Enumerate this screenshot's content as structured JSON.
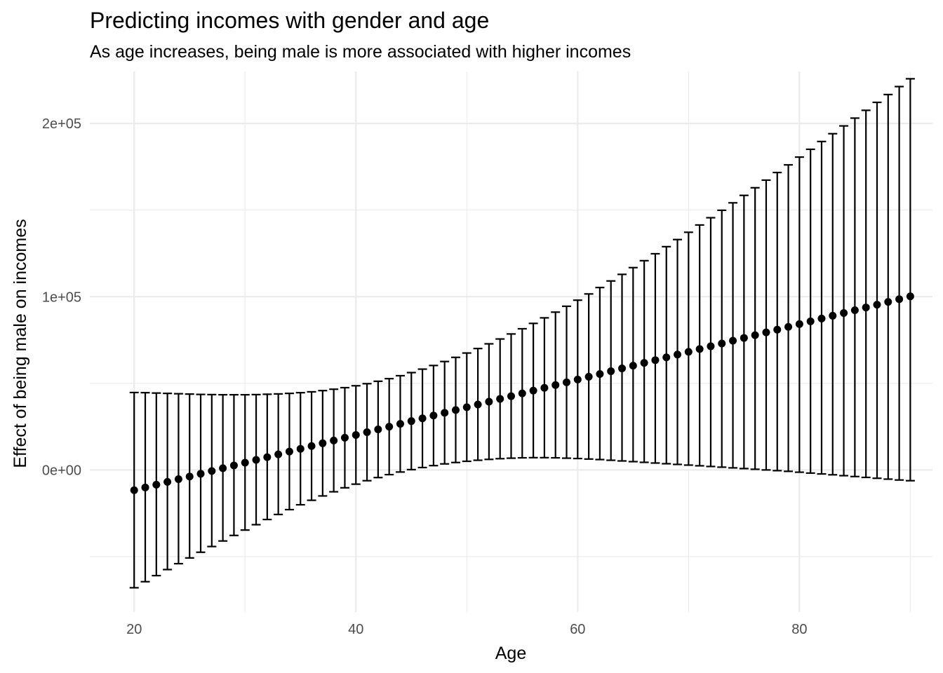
{
  "chart_data": {
    "type": "scatter",
    "title": "Predicting incomes with gender and age",
    "subtitle": "As age increases, being male is more associated with higher incomes",
    "xlabel": "Age",
    "ylabel": "Effect of being male on incomes",
    "xlim": [
      16,
      92
    ],
    "ylim": [
      -82000,
      230000
    ],
    "x_major_ticks": [
      20,
      40,
      60,
      80
    ],
    "x_minor_ticks": [
      30,
      50,
      70,
      90
    ],
    "y_major_ticks": [
      0,
      100000,
      200000
    ],
    "y_minor_ticks": [
      -50000,
      50000,
      150000
    ],
    "x_tick_labels": [
      "20",
      "40",
      "60",
      "80"
    ],
    "y_tick_labels": [
      "0e+00",
      "1e+05",
      "2e+05"
    ],
    "grid": true,
    "error_bars": true,
    "point_color": "#000000",
    "series": [
      {
        "x": [
          20,
          21,
          22,
          23,
          24,
          25,
          26,
          27,
          28,
          29,
          30,
          31,
          32,
          33,
          34,
          35,
          36,
          37,
          38,
          39,
          40,
          41,
          42,
          43,
          44,
          45,
          46,
          47,
          48,
          49,
          50,
          51,
          52,
          53,
          54,
          55,
          56,
          57,
          58,
          59,
          60,
          61,
          62,
          63,
          64,
          65,
          66,
          67,
          68,
          69,
          70,
          71,
          72,
          73,
          74,
          75,
          76,
          77,
          78,
          79,
          80,
          81,
          82,
          83,
          84,
          85,
          86,
          87,
          88,
          89,
          90
        ],
        "y": [
          -11700,
          -10100,
          -8500,
          -6900,
          -5300,
          -3800,
          -2200,
          -600,
          1000,
          2600,
          4200,
          5800,
          7400,
          9000,
          10600,
          12200,
          13800,
          15400,
          17000,
          18600,
          20200,
          21800,
          23400,
          25000,
          26600,
          28200,
          29800,
          31400,
          33000,
          34600,
          36200,
          37800,
          39400,
          41000,
          42600,
          44200,
          45800,
          47400,
          49000,
          50600,
          52200,
          53800,
          55400,
          57000,
          58600,
          60200,
          61800,
          63400,
          65000,
          66600,
          68200,
          69800,
          71400,
          73000,
          74600,
          76200,
          77800,
          79400,
          81000,
          82600,
          84200,
          85800,
          87400,
          89000,
          90600,
          92200,
          93800,
          95400,
          97000,
          98600,
          100200
        ],
        "lower": [
          -68000,
          -64500,
          -61000,
          -57500,
          -54100,
          -50800,
          -47500,
          -44200,
          -41000,
          -37800,
          -34700,
          -31600,
          -28600,
          -25700,
          -22900,
          -20100,
          -17500,
          -15000,
          -12600,
          -10300,
          -8200,
          -6200,
          -4400,
          -2700,
          -1200,
          200,
          1400,
          2500,
          3500,
          4300,
          5000,
          5600,
          6100,
          6500,
          6800,
          7000,
          7100,
          7100,
          7000,
          6800,
          6600,
          6300,
          6000,
          5600,
          5200,
          4800,
          4400,
          4000,
          3600,
          3200,
          2800,
          2400,
          2000,
          1600,
          1200,
          800,
          400,
          0,
          -400,
          -800,
          -1300,
          -1800,
          -2300,
          -2800,
          -3300,
          -3800,
          -4300,
          -4800,
          -5300,
          -5800,
          -6200
        ],
        "upper": [
          44700,
          44600,
          44400,
          44200,
          44000,
          43800,
          43600,
          43500,
          43400,
          43400,
          43400,
          43500,
          43700,
          43900,
          44200,
          44600,
          45100,
          45800,
          46600,
          47500,
          48600,
          49800,
          51200,
          52700,
          54400,
          56200,
          58200,
          60300,
          62600,
          65000,
          67500,
          70100,
          72800,
          75600,
          78500,
          81500,
          84600,
          87800,
          91100,
          94500,
          98000,
          101600,
          105300,
          109100,
          112900,
          116800,
          120800,
          124800,
          128900,
          133000,
          137200,
          141400,
          145600,
          149900,
          154200,
          158500,
          162900,
          167300,
          171700,
          176100,
          180600,
          185100,
          189600,
          194100,
          198600,
          203100,
          207600,
          212200,
          216700,
          221300,
          225800
        ]
      }
    ]
  }
}
